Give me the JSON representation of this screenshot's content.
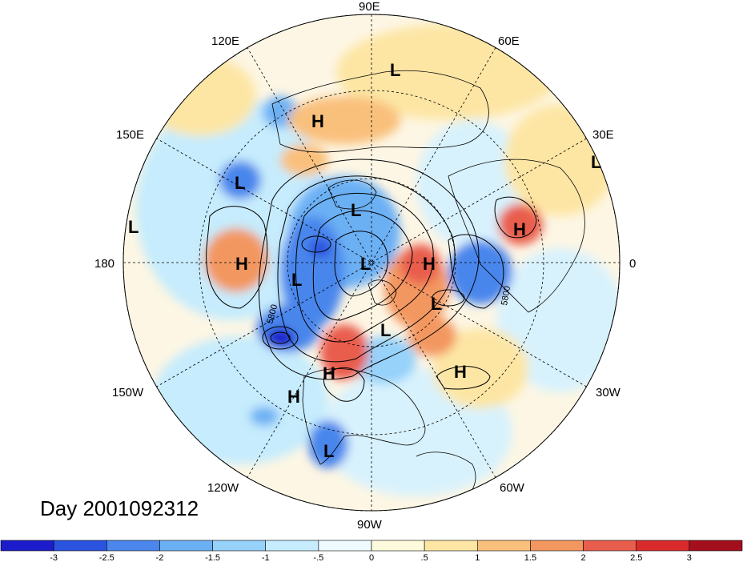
{
  "title": "Day 2001092312",
  "longitude_labels": {
    "north": "90E",
    "ne": "60E",
    "ene": "30E",
    "east": "0",
    "ese": "30W",
    "se": "60W",
    "south": "90W",
    "sw": "120W",
    "wsw": "150W",
    "west": "180",
    "wnw": "150E",
    "nw": "120E"
  },
  "contour_label": "5800",
  "pressure_centers": [
    {
      "type": "L",
      "lon_hint": "E Siberia"
    },
    {
      "type": "H",
      "lon_hint": "Central Asia"
    },
    {
      "type": "L",
      "lon_hint": "NW Pacific"
    },
    {
      "type": "L",
      "lon_hint": "Arctic"
    },
    {
      "type": "H",
      "lon_hint": "N Pacific"
    },
    {
      "type": "L",
      "lon_hint": "Bering"
    },
    {
      "type": "L",
      "lon_hint": "N Pole"
    },
    {
      "type": "H",
      "lon_hint": "Greenland"
    },
    {
      "type": "L",
      "lon_hint": "N Atlantic"
    },
    {
      "type": "L",
      "lon_hint": "Hudson Bay"
    },
    {
      "type": "H",
      "lon_hint": "Canada"
    },
    {
      "type": "H",
      "lon_hint": "Atlantic"
    },
    {
      "type": "H",
      "lon_hint": "NE Pacific"
    },
    {
      "type": "L",
      "lon_hint": "Mexico"
    },
    {
      "type": "L",
      "lon_hint": "Europe"
    },
    {
      "type": "H",
      "lon_hint": "Scandinavia"
    },
    {
      "type": "L",
      "lon_hint": "Date line"
    }
  ],
  "colorbar": {
    "colors": [
      "#1d1ccc",
      "#2a53e0",
      "#4a86ec",
      "#6cb0f4",
      "#96d2fa",
      "#c6ecfd",
      "#eefafe",
      "#fefbdc",
      "#fde6a4",
      "#f9c07c",
      "#f39760",
      "#e95d4d",
      "#d92b2b",
      "#a40f1e"
    ],
    "ticks": [
      "-3",
      "-2.5",
      "-2",
      "-1.5",
      "-1",
      "-.5",
      "0",
      ".5",
      "1",
      "1.5",
      "2",
      "2.5",
      "3"
    ]
  }
}
